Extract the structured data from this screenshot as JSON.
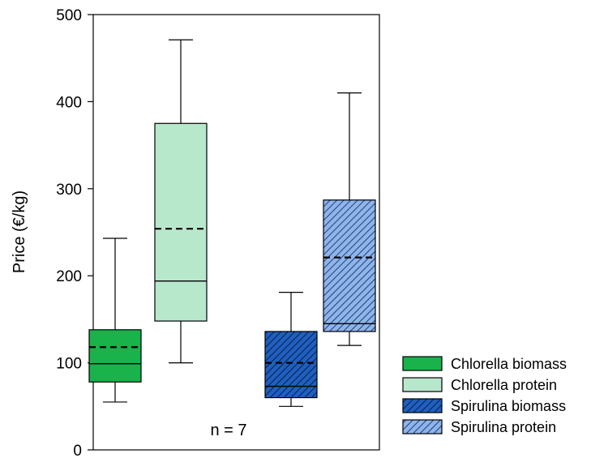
{
  "chart_data": {
    "type": "box",
    "title": "",
    "xlabel": "",
    "ylabel": "Price (€/kg)",
    "ylim": [
      0,
      500
    ],
    "yticks": [
      "0",
      "100",
      "200",
      "300",
      "400",
      "500"
    ],
    "ytick_values": [
      0,
      100,
      200,
      300,
      400,
      500
    ],
    "annotation": "n = 7",
    "legend_position": "right, outside plot",
    "series": [
      {
        "name": "Chlorella biomass",
        "min": 55,
        "q1": 78,
        "median": 99,
        "mean": 118,
        "q3": 138,
        "max": 243,
        "color": "#19b24b",
        "hatch": false
      },
      {
        "name": "Chlorella protein",
        "min": 100,
        "q1": 148,
        "median": 194,
        "mean": 254,
        "q3": 375,
        "max": 471,
        "color": "#b8e8cc",
        "hatch": false
      },
      {
        "name": "Spirulina biomass",
        "min": 50,
        "q1": 60,
        "median": 73,
        "mean": 100,
        "q3": 136,
        "max": 181,
        "color": "#1f5fbf",
        "hatch": true
      },
      {
        "name": "Spirulina protein",
        "min": 120,
        "q1": 136,
        "median": 145,
        "mean": 221,
        "q3": 287,
        "max": 410,
        "color": "#8fb4ea",
        "hatch": true
      }
    ]
  }
}
